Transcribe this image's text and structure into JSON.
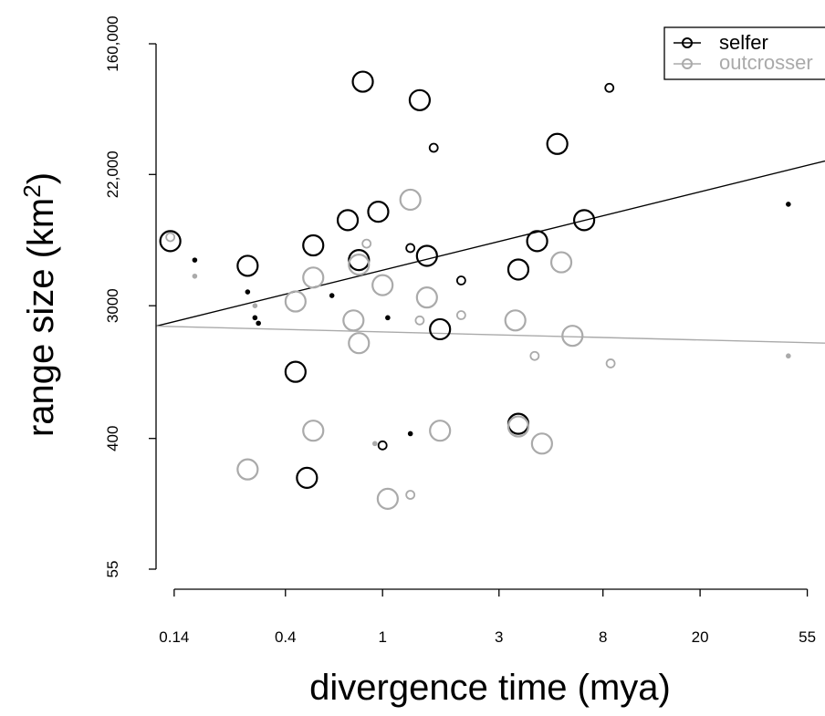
{
  "chart_data": {
    "type": "scatter",
    "x_scale": "log",
    "y_scale": "log",
    "xlabel": "divergence time (mya)",
    "ylabel_prefix": "range size (km",
    "ylabel_sup": "2",
    "ylabel_suffix": ")",
    "x_ticks": [
      {
        "label": "0.14",
        "value": 0.14
      },
      {
        "label": "0.4",
        "value": 0.4
      },
      {
        "label": "1",
        "value": 1
      },
      {
        "label": "3",
        "value": 3
      },
      {
        "label": "8",
        "value": 8
      },
      {
        "label": "20",
        "value": 20
      },
      {
        "label": "55",
        "value": 55
      }
    ],
    "y_ticks": [
      {
        "label": "55",
        "value": 55
      },
      {
        "label": "400",
        "value": 400
      },
      {
        "label": "3000",
        "value": 3000
      },
      {
        "label": "22,000",
        "value": 22000
      },
      {
        "label": "160,000",
        "value": 160000
      }
    ],
    "xlim": [
      0.118,
      65
    ],
    "ylim": [
      55,
      160000
    ],
    "grid": false,
    "legend": {
      "position": "top-right",
      "entries": [
        {
          "label": "selfer",
          "color": "#000000"
        },
        {
          "label": "outcrosser",
          "color": "#aaaaaa"
        }
      ]
    },
    "series": [
      {
        "name": "selfer",
        "color": "#000000",
        "points": [
          [
            0.135,
            8000,
            3
          ],
          [
            0.17,
            6000,
            1
          ],
          [
            0.28,
            5500,
            3
          ],
          [
            0.28,
            3700,
            1
          ],
          [
            0.3,
            2500,
            1
          ],
          [
            0.31,
            2300,
            1
          ],
          [
            0.44,
            1100,
            3
          ],
          [
            0.52,
            7500,
            3
          ],
          [
            0.62,
            3500,
            1
          ],
          [
            0.72,
            11000,
            3
          ],
          [
            0.8,
            6000,
            3
          ],
          [
            0.83,
            90000,
            3
          ],
          [
            0.96,
            12500,
            3
          ],
          [
            1.0,
            360,
            2
          ],
          [
            1.05,
            2500,
            1
          ],
          [
            1.3,
            7200,
            2
          ],
          [
            1.42,
            68000,
            3
          ],
          [
            1.52,
            6400,
            3
          ],
          [
            1.62,
            33000,
            2
          ],
          [
            1.72,
            2100,
            3
          ],
          [
            2.1,
            4400,
            2
          ],
          [
            3.6,
            500,
            3
          ],
          [
            3.6,
            5200,
            3
          ],
          [
            4.3,
            8000,
            3
          ],
          [
            5.2,
            35000,
            3
          ],
          [
            6.7,
            11000,
            3
          ],
          [
            8.5,
            82000,
            2
          ],
          [
            46,
            14000,
            1
          ],
          [
            0.49,
            220,
            3
          ],
          [
            1.3,
            430,
            1
          ]
        ]
      },
      {
        "name": "outcrosser",
        "color": "#aaaaaa",
        "points": [
          [
            0.135,
            8500,
            2
          ],
          [
            0.17,
            4700,
            1
          ],
          [
            0.28,
            250,
            3
          ],
          [
            0.3,
            3000,
            1
          ],
          [
            0.44,
            3200,
            3
          ],
          [
            0.52,
            450,
            3
          ],
          [
            0.52,
            4600,
            3
          ],
          [
            0.76,
            2400,
            3
          ],
          [
            0.8,
            1700,
            3
          ],
          [
            0.8,
            5600,
            3
          ],
          [
            0.86,
            7700,
            2
          ],
          [
            0.93,
            370,
            1
          ],
          [
            1.0,
            4100,
            3
          ],
          [
            1.05,
            160,
            3
          ],
          [
            1.3,
            15000,
            3
          ],
          [
            1.3,
            170,
            2
          ],
          [
            1.42,
            2400,
            2
          ],
          [
            1.52,
            3400,
            3
          ],
          [
            1.72,
            450,
            3
          ],
          [
            2.1,
            2600,
            2
          ],
          [
            3.5,
            2400,
            3
          ],
          [
            3.6,
            480,
            3
          ],
          [
            4.2,
            1400,
            2
          ],
          [
            4.5,
            370,
            3
          ],
          [
            5.4,
            5800,
            3
          ],
          [
            6.0,
            1900,
            3
          ],
          [
            8.6,
            1250,
            2
          ],
          [
            46,
            1400,
            1
          ]
        ]
      }
    ],
    "trend_lines": [
      {
        "series": "selfer",
        "color": "#000000",
        "from": [
          0.118,
          2200
        ],
        "to": [
          65,
          27000
        ]
      },
      {
        "series": "outcrosser",
        "color": "#aaaaaa",
        "from": [
          0.118,
          2200
        ],
        "to": [
          65,
          1700
        ]
      }
    ]
  }
}
